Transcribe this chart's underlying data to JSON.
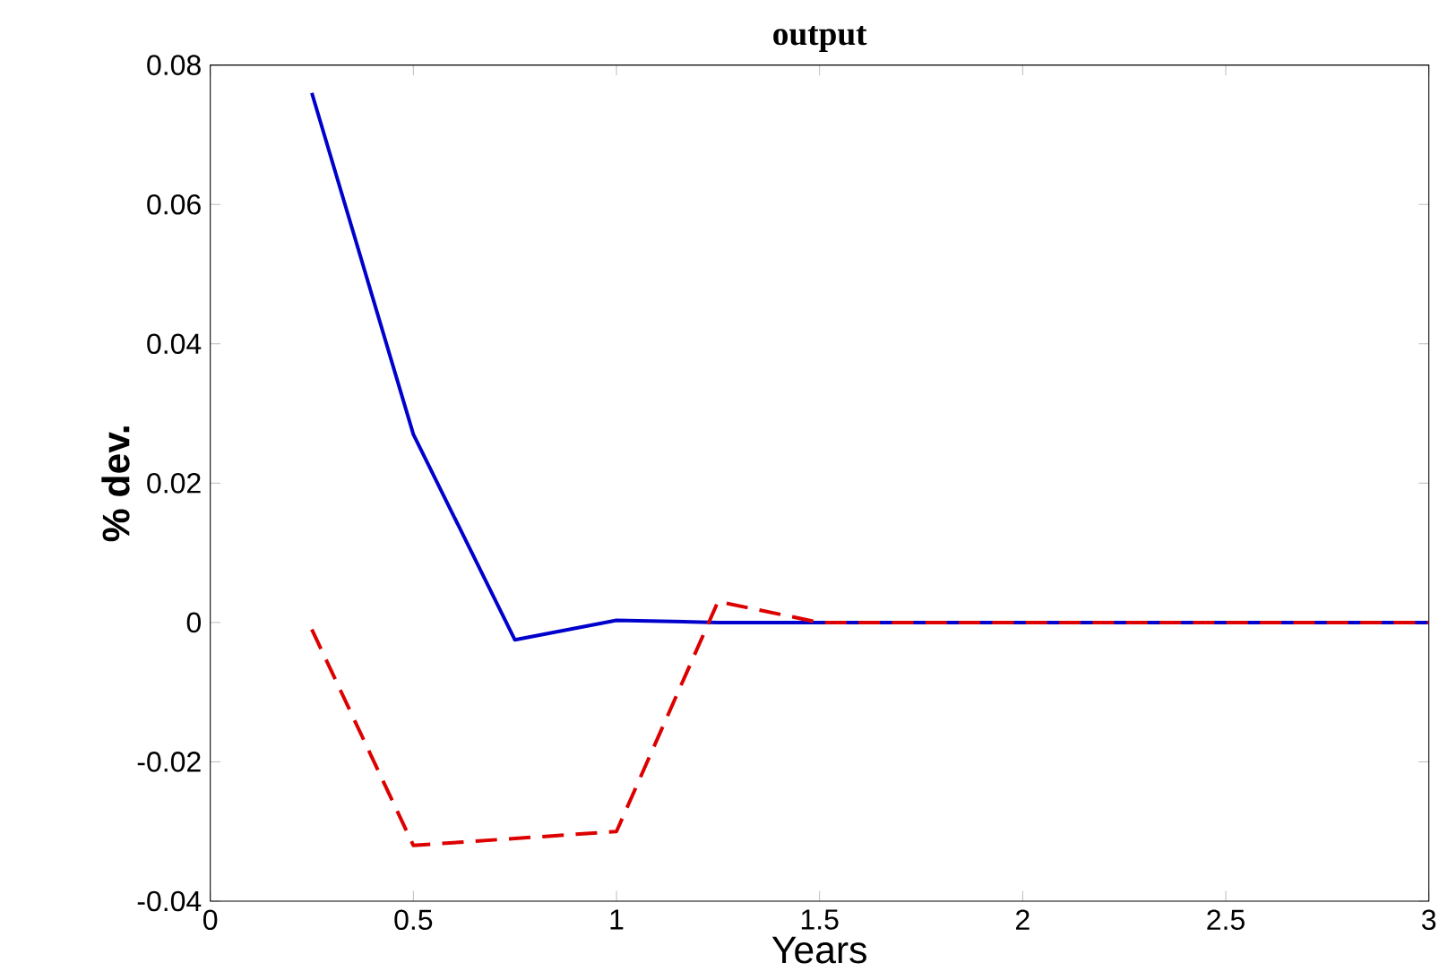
{
  "chart_data": {
    "type": "line",
    "title": "output",
    "xlabel": "Years",
    "ylabel": "% dev.",
    "x": [
      0.25,
      0.5,
      0.75,
      1,
      1.25,
      1.5,
      1.75,
      2,
      2.25,
      2.5,
      2.75,
      3
    ],
    "series": [
      {
        "color": "#0000cc",
        "line_style": "solid",
        "values": [
          0.076,
          0.027,
          -0.0025,
          0.0003,
          0,
          0,
          0,
          0,
          0,
          0,
          0,
          0
        ]
      },
      {
        "color": "#dd0000",
        "line_style": "dashed",
        "values": [
          -0.001,
          -0.032,
          -0.031,
          -0.03,
          0.003,
          0,
          0,
          0,
          0,
          0,
          0,
          0
        ]
      }
    ],
    "xlim": [
      0,
      3
    ],
    "ylim": [
      -0.04,
      0.08
    ],
    "xticks": [
      0,
      0.5,
      1,
      1.5,
      2,
      2.5,
      3
    ],
    "yticks": [
      -0.04,
      -0.02,
      0,
      0.02,
      0.04,
      0.06,
      0.08
    ],
    "grid": false,
    "marker": "none"
  }
}
